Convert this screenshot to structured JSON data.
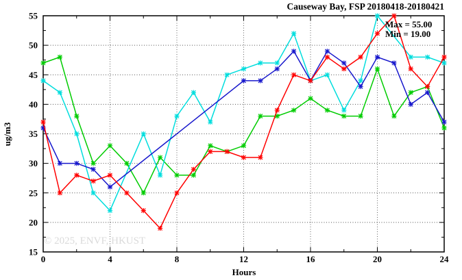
{
  "chart_data": {
    "type": "line",
    "title": "Causeway Bay, FSP 20180418-20180421",
    "xlabel": "Hours",
    "ylabel": "ug/m3",
    "xlim": [
      0,
      24
    ],
    "ylim": [
      15,
      55
    ],
    "xticks": [
      0,
      4,
      8,
      12,
      16,
      20,
      24
    ],
    "yticks": [
      15,
      20,
      25,
      30,
      35,
      40,
      45,
      50,
      55
    ],
    "x_minor_step": 2,
    "y_minor_step": 2.5,
    "grid": true,
    "legend_position": "top-right-inside",
    "annotations": [
      "Max = 55.00",
      "Min = 19.00"
    ],
    "stats": {
      "max": 55.0,
      "min": 19.0
    },
    "watermark": "© 2025, ENVF, HKUST",
    "x": [
      0,
      1,
      2,
      3,
      4,
      5,
      6,
      7,
      8,
      9,
      10,
      11,
      12,
      13,
      14,
      15,
      16,
      17,
      18,
      19,
      20,
      21,
      22,
      23,
      24
    ],
    "series": [
      {
        "name": "green",
        "color": "#00cc00",
        "values": [
          47,
          48,
          38,
          30,
          33,
          30,
          25,
          31,
          28,
          28,
          33,
          32,
          33,
          38,
          38,
          39,
          41,
          39,
          38,
          38,
          46,
          38,
          42,
          43,
          36
        ]
      },
      {
        "name": "cyan",
        "color": "#00dddd",
        "values": [
          44,
          42,
          35,
          25,
          22,
          null,
          35,
          28,
          38,
          42,
          37,
          45,
          46,
          47,
          47,
          52,
          44,
          45,
          39,
          44,
          55,
          null,
          48,
          48,
          47
        ]
      },
      {
        "name": "blue",
        "color": "#1717cc",
        "values": [
          36,
          30,
          30,
          29,
          26,
          null,
          null,
          null,
          null,
          null,
          null,
          null,
          44,
          44,
          46,
          49,
          44,
          49,
          47,
          43,
          48,
          47,
          40,
          42,
          37
        ]
      },
      {
        "name": "red",
        "color": "#ff0000",
        "values": [
          37,
          25,
          28,
          27,
          28,
          25,
          22,
          19,
          25,
          29,
          32,
          32,
          31,
          31,
          39,
          45,
          44,
          48,
          46,
          48,
          52,
          55,
          46,
          43,
          48
        ]
      }
    ]
  }
}
